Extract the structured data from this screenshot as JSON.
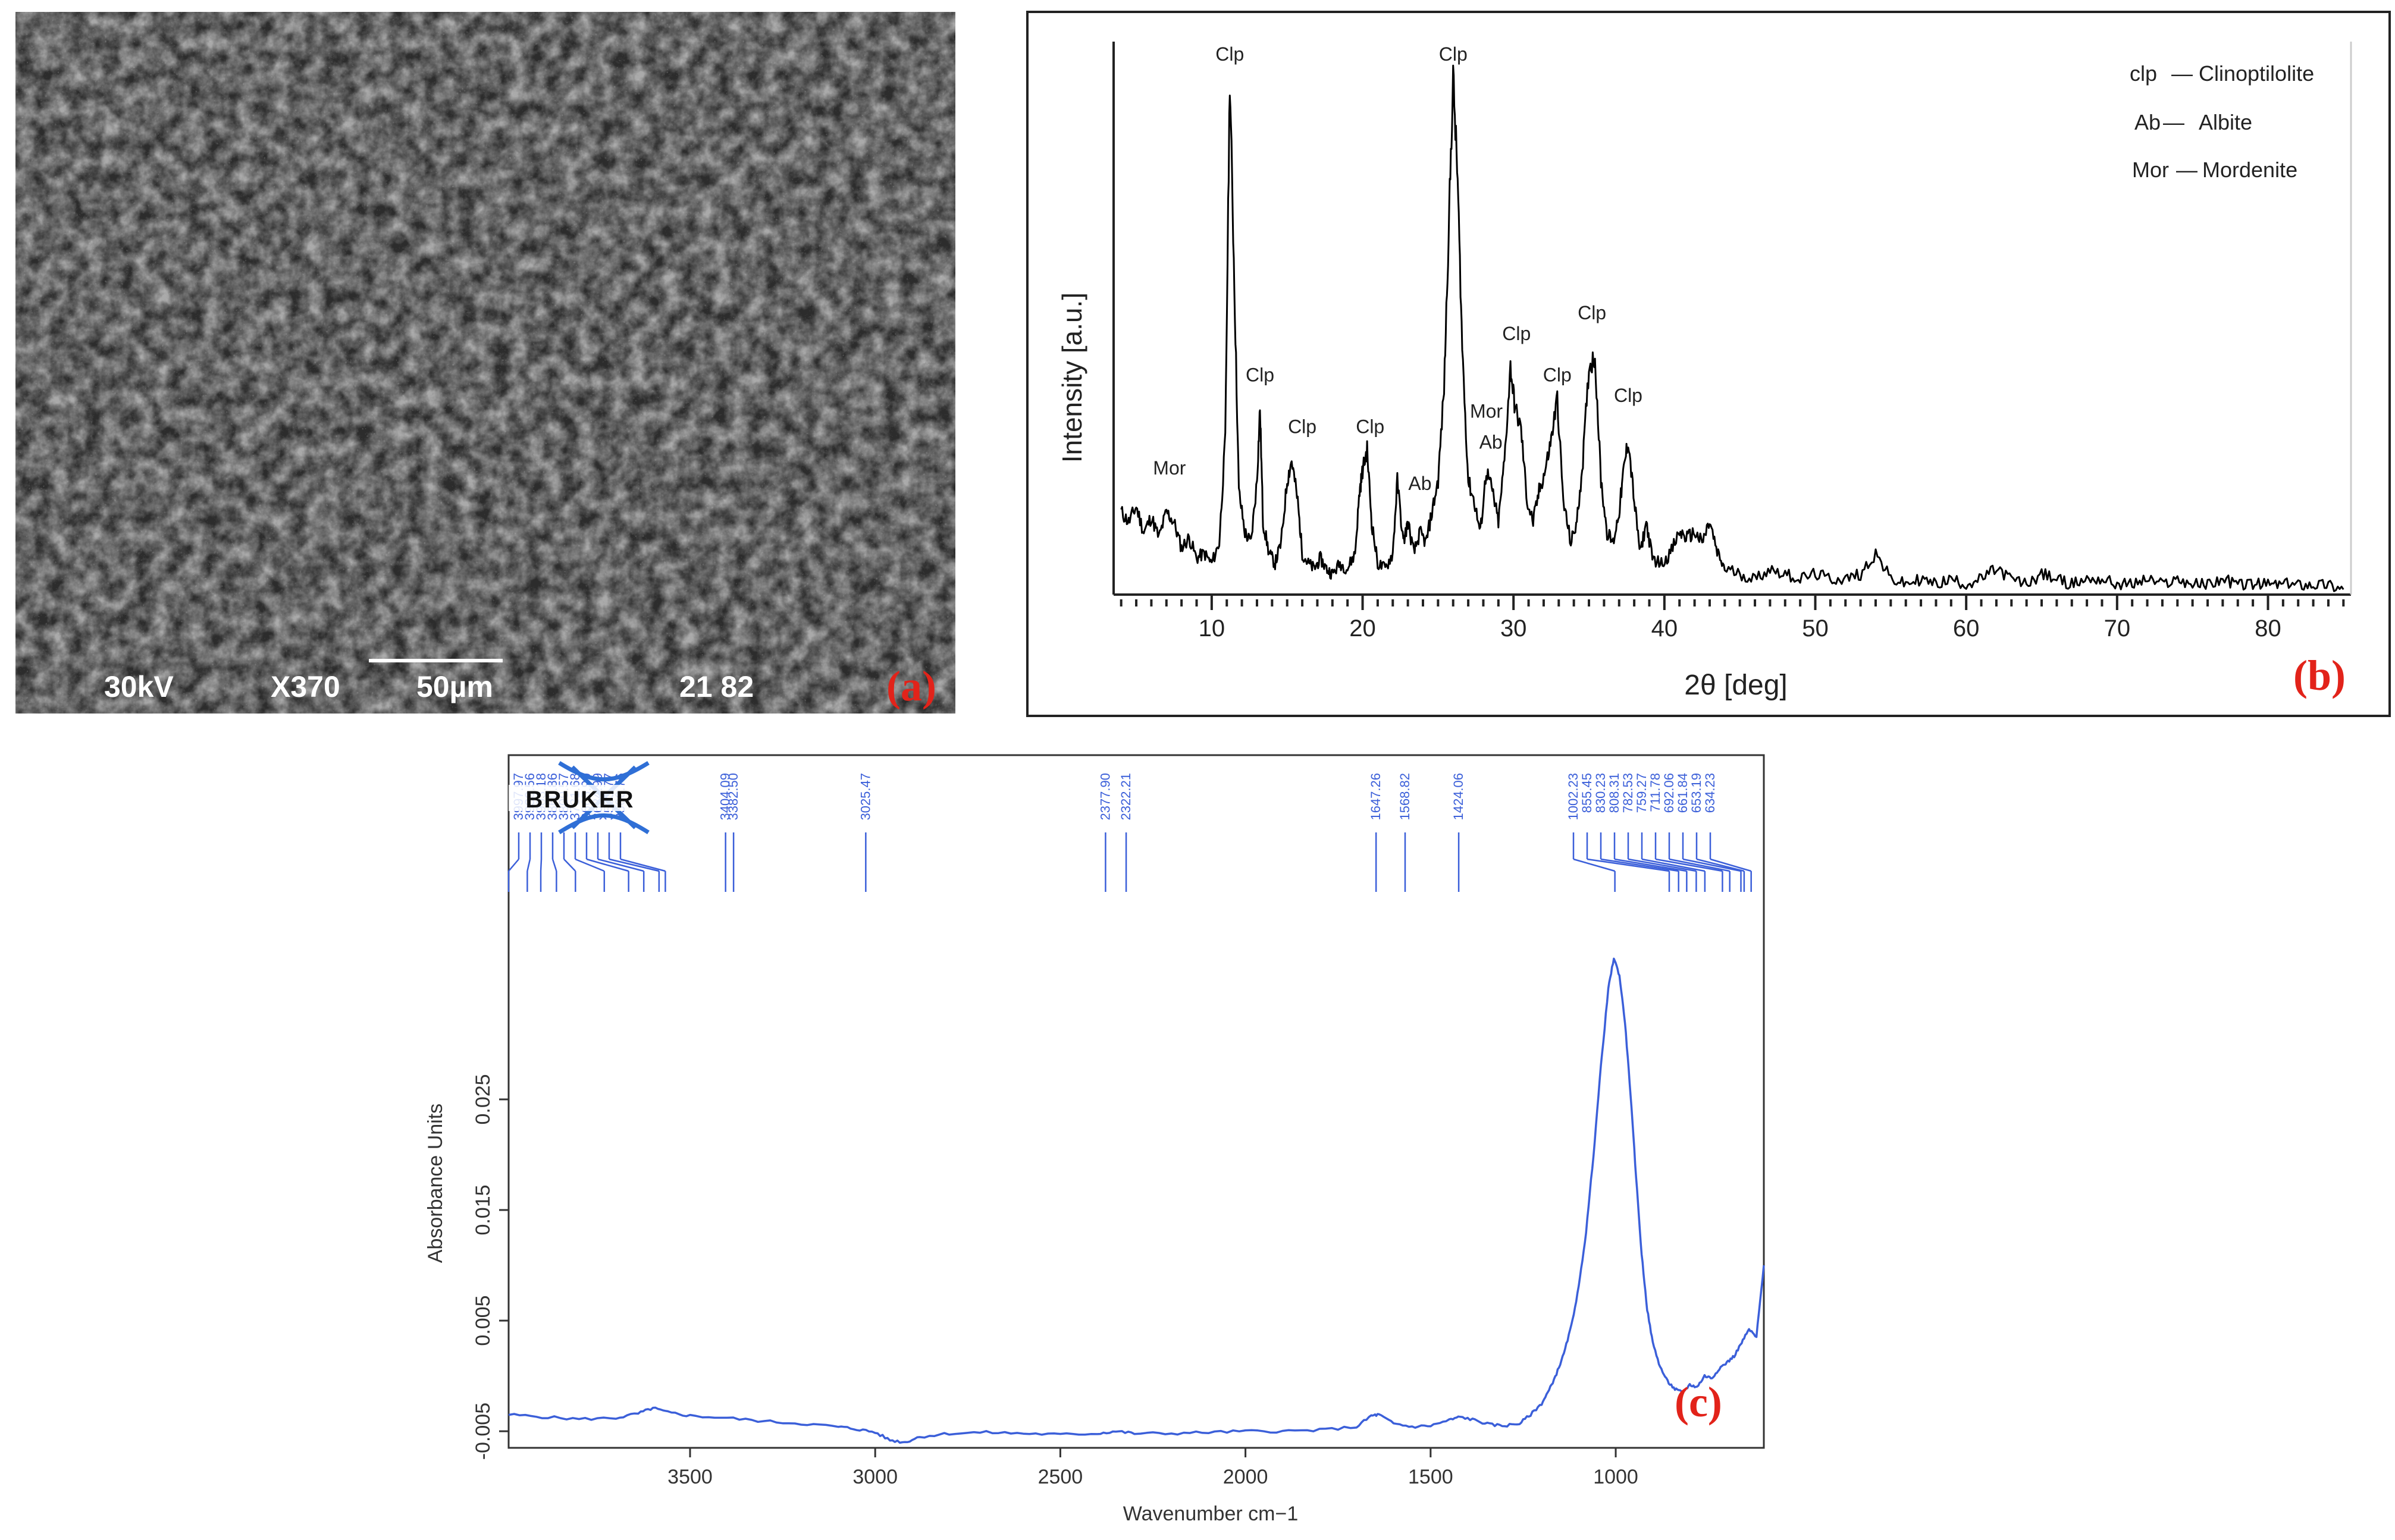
{
  "panels": {
    "a": {
      "letter": "(a)",
      "voltage": "30kV",
      "magnification": "X370",
      "scale_bar": "50µm",
      "code": "21 82"
    },
    "b": {
      "letter": "(b)"
    },
    "c": {
      "letter": "(c)",
      "logo": "BRUKER"
    }
  },
  "chart_data": [
    {
      "type": "line",
      "panel": "b",
      "xlabel": "2θ [deg]",
      "ylabel": "Intensity [a.u.]",
      "xlim": [
        3.5,
        85.5
      ],
      "ylim": [
        0,
        100
      ],
      "x_ticks": [
        10,
        20,
        30,
        40,
        50,
        60,
        70,
        80
      ],
      "y_ticks": [],
      "line_color": "#000000",
      "legend": {
        "position": "top-right",
        "entries": [
          {
            "abbr": "clp",
            "dash": "—",
            "name": "Clinoptilolite"
          },
          {
            "abbr": "Ab",
            "dash": "—",
            "name": "Albite"
          },
          {
            "abbr": "Mor",
            "dash": "—",
            "name": "Mordenite"
          }
        ]
      },
      "peak_labels": [
        {
          "text": "Mor",
          "x": 7.2,
          "y": 20
        },
        {
          "text": "Clp",
          "x": 11.2,
          "y": 100
        },
        {
          "text": "Clp",
          "x": 13.2,
          "y": 38
        },
        {
          "text": "Clp",
          "x": 16.0,
          "y": 28
        },
        {
          "text": "Clp",
          "x": 20.5,
          "y": 28
        },
        {
          "text": "Ab",
          "x": 23.8,
          "y": 17
        },
        {
          "text": "Clp",
          "x": 26.0,
          "y": 100
        },
        {
          "text": "Mor",
          "x": 28.2,
          "y": 31
        },
        {
          "text": "Ab",
          "x": 28.5,
          "y": 25
        },
        {
          "text": "Clp",
          "x": 30.2,
          "y": 46
        },
        {
          "text": "Clp",
          "x": 32.9,
          "y": 38
        },
        {
          "text": "Clp",
          "x": 35.2,
          "y": 50
        },
        {
          "text": "Clp",
          "x": 37.6,
          "y": 34
        }
      ],
      "series": [
        {
          "x": [
            4,
            4.5,
            5,
            5.5,
            6,
            6.5,
            7,
            7.5,
            8,
            8.5,
            9,
            9.5,
            10,
            10.5,
            10.9,
            11.2,
            11.5,
            11.8,
            12.2,
            12.6,
            13.0,
            13.2,
            13.4,
            13.8,
            14.2,
            14.6,
            15.0,
            15.3,
            15.7,
            16.0,
            16.4,
            16.8,
            17.2,
            17.6,
            18.0,
            18.5,
            19.0,
            19.5,
            19.8,
            20.0,
            20.3,
            20.6,
            21.0,
            21.5,
            22.0,
            22.3,
            22.7,
            23.0,
            23.4,
            23.8,
            24.2,
            24.6,
            25.0,
            25.4,
            25.7,
            26.0,
            26.3,
            26.6,
            27.0,
            27.4,
            27.8,
            28.2,
            28.6,
            29.0,
            29.4,
            29.8,
            30.1,
            30.5,
            30.9,
            31.3,
            31.7,
            32.1,
            32.5,
            32.9,
            33.3,
            33.8,
            34.2,
            34.6,
            35.0,
            35.4,
            35.8,
            36.2,
            36.6,
            37.0,
            37.3,
            37.6,
            38.0,
            38.4,
            38.8,
            39.2,
            39.8,
            40.4,
            41.0,
            41.5,
            42.0,
            42.5,
            43.0,
            43.5,
            44.0,
            45,
            46,
            47,
            48,
            49,
            50,
            51,
            52,
            53,
            54,
            55,
            56,
            57,
            58,
            59,
            60,
            61,
            62,
            63,
            64,
            65,
            66,
            67,
            68,
            69,
            70,
            71,
            72,
            73,
            74,
            75,
            76,
            77,
            78,
            79,
            80,
            81,
            82,
            83,
            84,
            85
          ],
          "y": [
            16,
            14,
            17,
            12,
            15,
            11,
            16,
            14,
            9,
            11,
            7,
            8,
            6,
            10,
            30,
            100,
            60,
            20,
            12,
            10,
            22,
            36,
            14,
            8,
            6,
            10,
            22,
            26,
            18,
            8,
            6,
            5,
            7,
            5,
            4,
            6,
            5,
            8,
            20,
            24,
            28,
            14,
            6,
            5,
            8,
            22,
            10,
            14,
            8,
            12,
            10,
            16,
            22,
            40,
            70,
            100,
            80,
            48,
            22,
            18,
            12,
            24,
            20,
            14,
            26,
            44,
            36,
            32,
            18,
            14,
            20,
            24,
            30,
            38,
            18,
            10,
            14,
            26,
            44,
            46,
            22,
            12,
            10,
            16,
            24,
            30,
            18,
            8,
            14,
            7,
            6,
            8,
            12,
            11,
            12,
            10,
            14,
            8,
            5,
            4,
            3,
            5,
            4,
            3,
            4,
            3,
            3,
            4,
            8,
            3,
            2,
            3,
            2,
            3,
            2,
            3,
            5,
            3,
            2,
            4,
            3,
            2,
            3,
            3,
            2,
            2,
            3,
            2,
            3,
            2,
            2,
            3,
            2,
            2,
            2,
            2,
            2,
            2,
            2,
            1
          ]
        }
      ]
    },
    {
      "type": "line",
      "panel": "c",
      "xlabel": "Wavenumber cm−1",
      "ylabel": "Absorbance Units",
      "xlim": [
        3990,
        600
      ],
      "ylim": [
        -0.0065,
        0.0408
      ],
      "x_ticks": [
        3500,
        3000,
        2500,
        2000,
        1500,
        1000
      ],
      "y_ticks": [
        -0.005,
        0.005,
        0.015,
        0.025
      ],
      "y_tick_labels": [
        "-0.005",
        "0.005",
        "0.015",
        "0.025"
      ],
      "line_color": "#3b5fd9",
      "peak_labels": [
        "3997.97",
        "3939.56",
        "3903.18",
        "3860.86",
        "3809.57",
        "3731.68",
        "3665.99",
        "3624.99",
        "3583.77",
        "3566.76",
        "3404.09",
        "3382.50",
        "3025.47",
        "2377.90",
        "2322.21",
        "1647.26",
        "1568.82",
        "1424.06",
        "1002.23",
        "855.45",
        "830.23",
        "808.31",
        "782.53",
        "759.27",
        "711.78",
        "692.06",
        "661.84",
        "653.19",
        "634.23"
      ],
      "series": [
        {
          "x": [
            3990,
            3900,
            3800,
            3700,
            3640,
            3600,
            3560,
            3500,
            3400,
            3300,
            3200,
            3100,
            3050,
            3000,
            2960,
            2920,
            2880,
            2800,
            2700,
            2600,
            2500,
            2400,
            2350,
            2300,
            2200,
            2100,
            2000,
            1900,
            1800,
            1700,
            1660,
            1640,
            1600,
            1550,
            1500,
            1450,
            1420,
            1380,
            1340,
            1300,
            1260,
            1230,
            1200,
            1180,
            1160,
            1140,
            1120,
            1100,
            1080,
            1060,
            1040,
            1020,
            1005,
            990,
            975,
            960,
            945,
            930,
            915,
            900,
            880,
            860,
            840,
            820,
            800,
            780,
            760,
            740,
            720,
            700,
            680,
            660,
            640,
            620,
            600
          ],
          "y": [
            -0.0035,
            -0.0037,
            -0.0039,
            -0.0038,
            -0.0034,
            -0.0029,
            -0.0033,
            -0.0036,
            -0.0038,
            -0.0041,
            -0.0043,
            -0.0046,
            -0.0048,
            -0.0051,
            -0.0058,
            -0.006,
            -0.0055,
            -0.0052,
            -0.0051,
            -0.0052,
            -0.0053,
            -0.0052,
            -0.005,
            -0.0052,
            -0.0052,
            -0.0051,
            -0.005,
            -0.005,
            -0.0049,
            -0.0046,
            -0.0036,
            -0.0035,
            -0.0043,
            -0.0046,
            -0.0045,
            -0.004,
            -0.0037,
            -0.004,
            -0.0044,
            -0.0045,
            -0.0043,
            -0.0035,
            -0.0025,
            -0.0013,
            0.0002,
            0.002,
            0.0045,
            0.008,
            0.013,
            0.02,
            0.028,
            0.035,
            0.0378,
            0.0362,
            0.032,
            0.0255,
            0.018,
            0.011,
            0.006,
            0.003,
            0.0008,
            -0.0005,
            -0.0012,
            -0.0015,
            -0.0008,
            -0.001,
            0.0,
            -0.0002,
            0.0007,
            0.0012,
            0.0018,
            0.003,
            0.0042,
            0.0035,
            0.01
          ]
        }
      ]
    }
  ]
}
